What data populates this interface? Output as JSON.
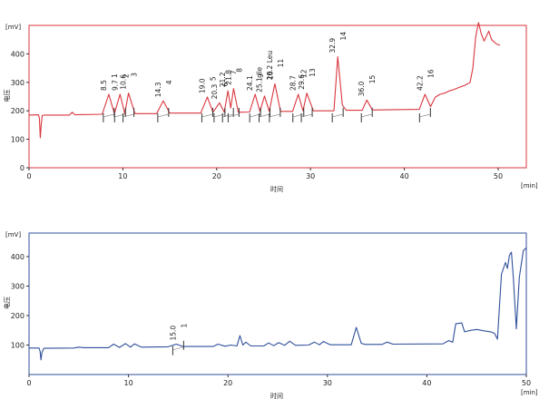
{
  "chart_data": [
    {
      "type": "line",
      "xlabel": "时间",
      "ylabel": "电压",
      "x_unit": "[min]",
      "y_unit": "[mV]",
      "color": "#d9363e",
      "xlim": [
        0,
        53
      ],
      "ylim": [
        0,
        500
      ],
      "x_ticks": [
        0,
        10,
        20,
        30,
        40,
        50
      ],
      "y_ticks": [
        0,
        100,
        200,
        300,
        400
      ],
      "baseline": 185,
      "points": [
        [
          0,
          185
        ],
        [
          1.0,
          186
        ],
        [
          1.1,
          175
        ],
        [
          1.2,
          105
        ],
        [
          1.3,
          150
        ],
        [
          1.4,
          183
        ],
        [
          1.6,
          185
        ],
        [
          4.3,
          185
        ],
        [
          4.6,
          195
        ],
        [
          4.9,
          186
        ],
        [
          7.8,
          188
        ],
        [
          8.5,
          258
        ],
        [
          9.1,
          190
        ],
        [
          9.7,
          258
        ],
        [
          10.2,
          190
        ],
        [
          10.6,
          262
        ],
        [
          11.3,
          190
        ],
        [
          13.6,
          190
        ],
        [
          14.3,
          235
        ],
        [
          15.0,
          192
        ],
        [
          18.3,
          192
        ],
        [
          19.0,
          248
        ],
        [
          19.6,
          195
        ],
        [
          20.3,
          228
        ],
        [
          20.8,
          195
        ],
        [
          21.2,
          270
        ],
        [
          21.5,
          210
        ],
        [
          21.8,
          278
        ],
        [
          22.3,
          195
        ],
        [
          23.5,
          196
        ],
        [
          24.1,
          258
        ],
        [
          24.6,
          198
        ],
        [
          25.1,
          252
        ],
        [
          25.6,
          198
        ],
        [
          26.2,
          295
        ],
        [
          26.8,
          198
        ],
        [
          28.1,
          198
        ],
        [
          28.7,
          258
        ],
        [
          29.2,
          200
        ],
        [
          29.6,
          262
        ],
        [
          30.3,
          200
        ],
        [
          32.5,
          200
        ],
        [
          32.9,
          390
        ],
        [
          33.4,
          220
        ],
        [
          33.8,
          202
        ],
        [
          35.5,
          202
        ],
        [
          36.0,
          238
        ],
        [
          36.6,
          203
        ],
        [
          41.6,
          205
        ],
        [
          42.2,
          258
        ],
        [
          42.8,
          215
        ],
        [
          43.3,
          248
        ],
        [
          43.8,
          258
        ],
        [
          44.3,
          262
        ],
        [
          44.8,
          270
        ],
        [
          45.3,
          275
        ],
        [
          45.8,
          282
        ],
        [
          46.5,
          290
        ],
        [
          47.0,
          300
        ],
        [
          47.3,
          350
        ],
        [
          47.6,
          460
        ],
        [
          47.9,
          510
        ],
        [
          48.2,
          470
        ],
        [
          48.5,
          445
        ],
        [
          49.0,
          480
        ],
        [
          49.3,
          450
        ],
        [
          49.8,
          435
        ],
        [
          50.2,
          430
        ]
      ],
      "peaks": [
        {
          "time": "8.5",
          "label": "1",
          "x": 8.5,
          "y": 258
        },
        {
          "time": "9.7",
          "label": "2",
          "x": 9.7,
          "y": 258
        },
        {
          "time": "10.6",
          "label": "3",
          "x": 10.6,
          "y": 262
        },
        {
          "time": "14.3",
          "label": "4",
          "x": 14.3,
          "y": 235
        },
        {
          "time": "19.0",
          "label": "5",
          "x": 19.0,
          "y": 248
        },
        {
          "time": "20.3",
          "label": "6",
          "x": 20.3,
          "y": 228
        },
        {
          "time": "21.2",
          "label": "7",
          "x": 21.2,
          "y": 270
        },
        {
          "time": "21.8",
          "label": "8",
          "x": 21.8,
          "y": 278
        },
        {
          "time": "24.1",
          "label": "9",
          "x": 24.1,
          "y": 258
        },
        {
          "time": "25.1 Ile",
          "label": "10",
          "x": 25.1,
          "y": 252
        },
        {
          "time": "26.2 Leu",
          "label": "11",
          "x": 26.2,
          "y": 295
        },
        {
          "time": "28.7",
          "label": "12",
          "x": 28.7,
          "y": 258
        },
        {
          "time": "29.6",
          "label": "13",
          "x": 29.6,
          "y": 262
        },
        {
          "time": "32.9",
          "label": "14",
          "x": 32.9,
          "y": 390
        },
        {
          "time": "36.0",
          "label": "15",
          "x": 36.0,
          "y": 238
        },
        {
          "time": "42.2",
          "label": "16",
          "x": 42.2,
          "y": 258
        }
      ]
    },
    {
      "type": "line",
      "xlabel": "时间",
      "ylabel": "电压",
      "x_unit": "[min]",
      "y_unit": "[mV]",
      "color": "#2f4f9a",
      "xlim": [
        0,
        50
      ],
      "ylim": [
        0,
        480
      ],
      "x_ticks": [
        0,
        10,
        20,
        30,
        40,
        50
      ],
      "y_ticks": [
        100,
        200,
        300,
        400
      ],
      "baseline": 90,
      "points": [
        [
          0,
          90
        ],
        [
          1.0,
          90
        ],
        [
          1.1,
          80
        ],
        [
          1.2,
          50
        ],
        [
          1.3,
          75
        ],
        [
          1.5,
          89
        ],
        [
          4.5,
          90
        ],
        [
          5.0,
          93
        ],
        [
          5.5,
          91
        ],
        [
          8.0,
          91
        ],
        [
          8.5,
          103
        ],
        [
          9.1,
          92
        ],
        [
          9.7,
          105
        ],
        [
          10.2,
          93
        ],
        [
          10.6,
          104
        ],
        [
          11.3,
          93
        ],
        [
          14.0,
          94
        ],
        [
          14.8,
          103
        ],
        [
          15.5,
          95
        ],
        [
          18.5,
          95
        ],
        [
          19.0,
          103
        ],
        [
          19.7,
          96
        ],
        [
          20.3,
          100
        ],
        [
          20.9,
          97
        ],
        [
          21.2,
          132
        ],
        [
          21.5,
          100
        ],
        [
          21.8,
          110
        ],
        [
          22.3,
          97
        ],
        [
          23.6,
          97
        ],
        [
          24.1,
          107
        ],
        [
          24.6,
          98
        ],
        [
          25.1,
          108
        ],
        [
          25.7,
          99
        ],
        [
          26.2,
          113
        ],
        [
          26.8,
          99
        ],
        [
          28.1,
          100
        ],
        [
          28.7,
          110
        ],
        [
          29.2,
          101
        ],
        [
          29.6,
          112
        ],
        [
          30.3,
          101
        ],
        [
          32.4,
          101
        ],
        [
          32.9,
          160
        ],
        [
          33.4,
          106
        ],
        [
          33.8,
          102
        ],
        [
          35.5,
          102
        ],
        [
          36.0,
          110
        ],
        [
          36.6,
          103
        ],
        [
          41.6,
          104
        ],
        [
          42.2,
          115
        ],
        [
          42.6,
          110
        ],
        [
          42.9,
          172
        ],
        [
          43.5,
          175
        ],
        [
          43.8,
          145
        ],
        [
          44.4,
          150
        ],
        [
          45.0,
          153
        ],
        [
          45.8,
          148
        ],
        [
          46.4,
          145
        ],
        [
          46.8,
          140
        ],
        [
          47.1,
          120
        ],
        [
          47.5,
          340
        ],
        [
          47.9,
          380
        ],
        [
          48.1,
          360
        ],
        [
          48.3,
          405
        ],
        [
          48.5,
          415
        ],
        [
          48.7,
          325
        ],
        [
          49.0,
          155
        ],
        [
          49.3,
          330
        ],
        [
          49.7,
          420
        ],
        [
          50.0,
          430
        ]
      ],
      "peaks": [
        {
          "time": "15.0",
          "label": "1",
          "x": 15.0,
          "y": 103
        }
      ]
    }
  ]
}
